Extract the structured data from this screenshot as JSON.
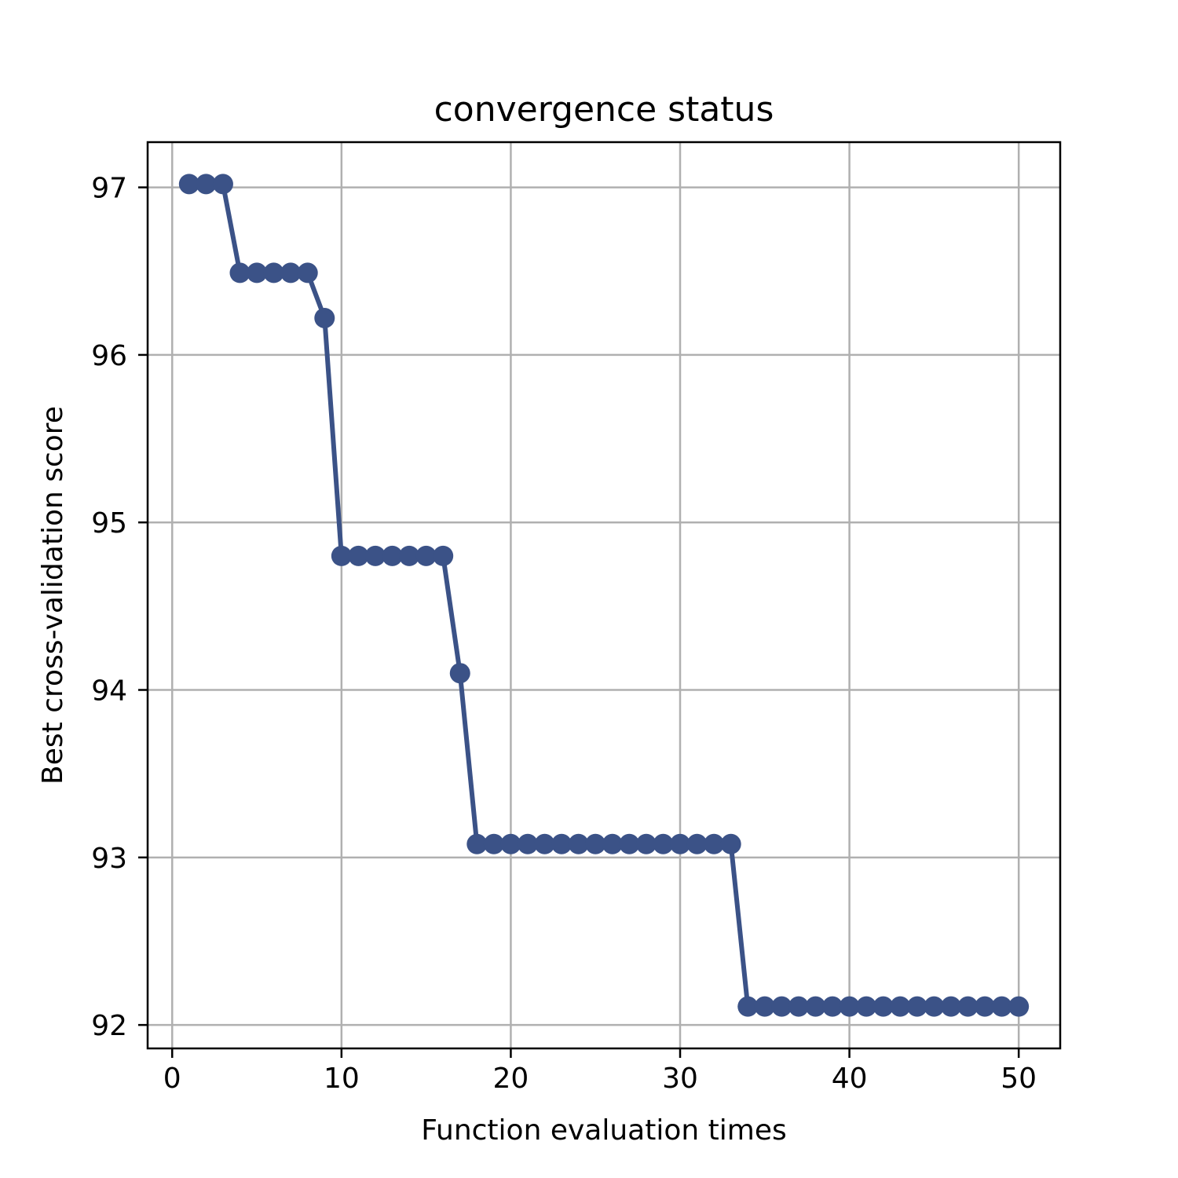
{
  "chart_data": {
    "type": "line",
    "title": "convergence status",
    "xlabel": "Function evaluation times",
    "ylabel": "Best cross-validation score",
    "xlim": [
      -1.45,
      52.45
    ],
    "ylim": [
      91.86,
      97.27
    ],
    "xticks": [
      0,
      10,
      20,
      30,
      40,
      50
    ],
    "yticks": [
      92,
      93,
      94,
      95,
      96,
      97
    ],
    "grid": true,
    "legend": "none",
    "series": [
      {
        "color": "#3b5287",
        "marker": "circle",
        "x": [
          1,
          2,
          3,
          4,
          5,
          6,
          7,
          8,
          9,
          10,
          11,
          12,
          13,
          14,
          15,
          16,
          17,
          18,
          19,
          20,
          21,
          22,
          23,
          24,
          25,
          26,
          27,
          28,
          29,
          30,
          31,
          32,
          33,
          34,
          35,
          36,
          37,
          38,
          39,
          40,
          41,
          42,
          43,
          44,
          45,
          46,
          47,
          48,
          49,
          50
        ],
        "values": [
          97.02,
          97.02,
          97.02,
          96.49,
          96.49,
          96.49,
          96.49,
          96.49,
          96.22,
          94.8,
          94.8,
          94.8,
          94.8,
          94.8,
          94.8,
          94.8,
          94.1,
          93.08,
          93.08,
          93.08,
          93.08,
          93.08,
          93.08,
          93.08,
          93.08,
          93.08,
          93.08,
          93.08,
          93.08,
          93.08,
          93.08,
          93.08,
          93.08,
          92.11,
          92.11,
          92.11,
          92.11,
          92.11,
          92.11,
          92.11,
          92.11,
          92.11,
          92.11,
          92.11,
          92.11,
          92.11,
          92.11,
          92.11,
          92.11,
          92.11
        ]
      }
    ]
  },
  "colors": {
    "line": "#3b5287",
    "grid": "#b0b0b0",
    "axes": "#000000"
  }
}
